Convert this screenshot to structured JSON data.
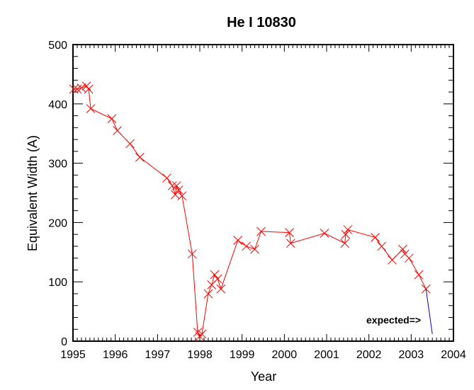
{
  "chart_data": {
    "type": "line",
    "title": "He I 10830",
    "xlabel": "Year",
    "ylabel": "Equivalent  Width (A)",
    "xlim": [
      1995,
      2004
    ],
    "ylim": [
      0,
      500
    ],
    "grid": false,
    "x_ticks": [
      "1995",
      "1996",
      "1997",
      "1998",
      "1999",
      "2000",
      "2001",
      "2002",
      "2003",
      "2004"
    ],
    "y_ticks": [
      "0",
      "100",
      "200",
      "300",
      "400",
      "500"
    ],
    "annotation": "expected=>",
    "series": [
      {
        "color": "#ff0000",
        "marker": "x",
        "x": [
          1995.02,
          1995.1,
          1995.2,
          1995.32,
          1995.37,
          1995.42,
          1995.92,
          1996.05,
          1996.35,
          1996.58,
          1997.22,
          1997.35,
          1997.42,
          1997.45,
          1997.5,
          1997.58,
          1997.82,
          1997.95,
          1998.0,
          1998.05,
          1998.2,
          1998.28,
          1998.35,
          1998.42,
          1998.5,
          1998.9,
          1999.1,
          1999.3,
          1999.45,
          2000.12,
          2000.15,
          2000.95,
          2001.43,
          2001.45,
          2001.5,
          2002.15,
          2002.3,
          2002.55,
          2002.8,
          2002.85,
          2002.95,
          2003.18,
          2003.35
        ],
        "y": [
          425,
          425,
          427,
          430,
          425,
          392,
          375,
          355,
          333,
          310,
          275,
          262,
          247,
          262,
          255,
          245,
          147,
          15,
          8,
          12,
          80,
          95,
          112,
          105,
          88,
          170,
          160,
          155,
          185,
          183,
          165,
          182,
          165,
          180,
          188,
          175,
          160,
          137,
          155,
          147,
          140,
          112,
          88
        ]
      },
      {
        "color": "#0000cc",
        "marker": "none",
        "x": [
          2003.35,
          2003.5
        ],
        "y": [
          88,
          12
        ]
      }
    ]
  }
}
